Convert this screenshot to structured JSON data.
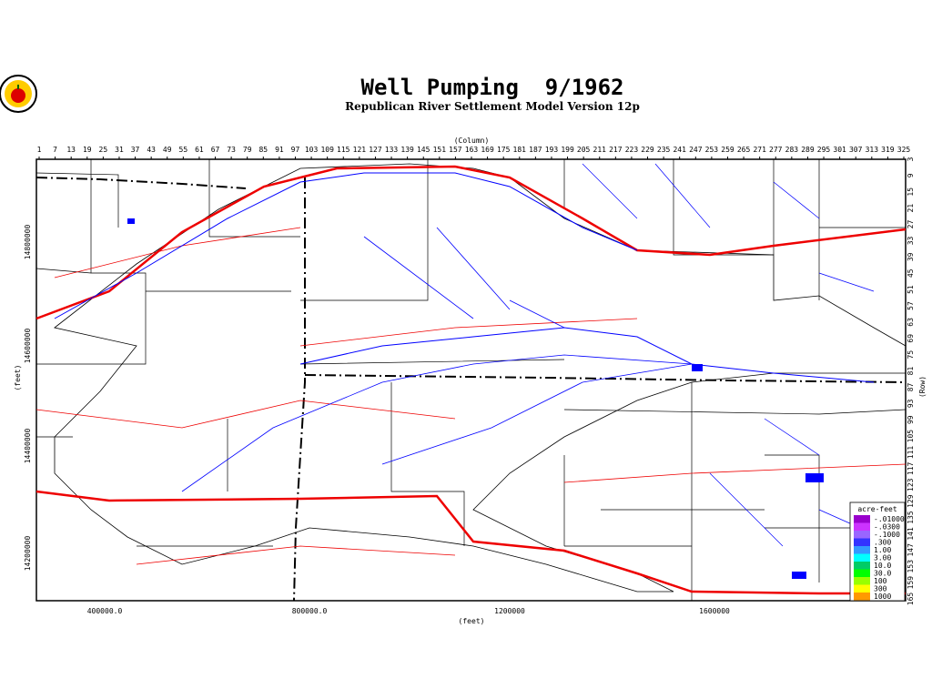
{
  "header": {
    "title": "Well Pumping  9/1962",
    "subtitle": "Republican River Settlement Model Version 12p"
  },
  "map": {
    "column_label": "(Column)",
    "columns": [
      "1",
      "7",
      "13",
      "19",
      "25",
      "31",
      "37",
      "43",
      "49",
      "55",
      "61",
      "67",
      "73",
      "79",
      "85",
      "91",
      "97",
      "103",
      "109",
      "115",
      "121",
      "127",
      "133",
      "139",
      "145",
      "151",
      "157",
      "163",
      "169",
      "175",
      "181",
      "187",
      "193",
      "199",
      "205",
      "211",
      "217",
      "223",
      "229",
      "235",
      "241",
      "247",
      "253",
      "259",
      "265",
      "271",
      "277",
      "283",
      "289",
      "295",
      "301",
      "307",
      "313",
      "319",
      "325"
    ],
    "row_label": "(Row)",
    "rows": [
      "3",
      "9",
      "15",
      "21",
      "27",
      "33",
      "39",
      "45",
      "51",
      "57",
      "63",
      "69",
      "75",
      "81",
      "87",
      "93",
      "99",
      "105",
      "111",
      "117",
      "123",
      "129",
      "135",
      "141",
      "147",
      "153",
      "159",
      "165"
    ],
    "x_label": "(feet)",
    "x_ticks": [
      "400000.0",
      "800000.0",
      "1200000",
      "1600000"
    ],
    "y_label": "(feet)",
    "y_ticks": [
      "14800000",
      "14600000",
      "14400000",
      "14200000"
    ]
  },
  "legend": {
    "title": "acre-feet",
    "entries": [
      {
        "label": "-.01000",
        "color": "#9900cc"
      },
      {
        "label": "-.0300",
        "color": "#cc33ff"
      },
      {
        "label": "-.1000",
        "color": "#9966ff"
      },
      {
        "label": ".300",
        "color": "#3333ff"
      },
      {
        "label": "1.00",
        "color": "#3399ff"
      },
      {
        "label": "3.00",
        "color": "#00ffff"
      },
      {
        "label": "10.0",
        "color": "#00cc66"
      },
      {
        "label": "30.0",
        "color": "#00ff00"
      },
      {
        "label": "100",
        "color": "#99ff00"
      },
      {
        "label": "300",
        "color": "#ffff00"
      },
      {
        "label": "1000",
        "color": "#ff9900"
      }
    ]
  }
}
